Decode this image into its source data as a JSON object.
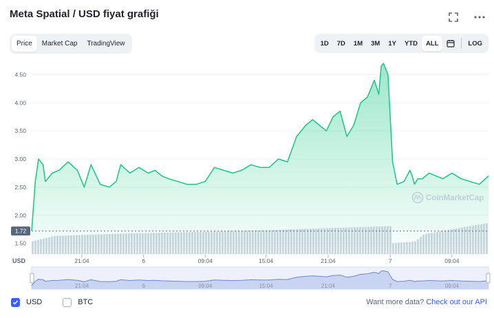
{
  "header": {
    "title": "Meta Spatial / USD fiyat grafiği",
    "fullscreen_icon": "fullscreen-icon",
    "more_icon": "more-horizontal-icon"
  },
  "tabs": [
    {
      "label": "Price",
      "active": true
    },
    {
      "label": "Market Cap",
      "active": false
    },
    {
      "label": "TradingView",
      "active": false
    }
  ],
  "ranges": [
    "1D",
    "7D",
    "1M",
    "3M",
    "1Y",
    "YTD",
    "ALL"
  ],
  "active_range": "ALL",
  "calendar_icon": "calendar-icon",
  "log_label": "LOG",
  "watermark": "CoinMarketCap",
  "footer": {
    "usd_label": "USD",
    "usd_checked": true,
    "btc_label": "BTC",
    "btc_checked": false,
    "api_prompt": "Want more data?",
    "api_link": "Check out our API"
  },
  "colors": {
    "line": "#16c784",
    "fill_top": "#16c784",
    "volume": "#cfd6e4",
    "navigator": "#6788d7",
    "accent": "#3861fb"
  },
  "chart_data": {
    "type": "line",
    "currency_label": "USD",
    "y_ticks": [
      "4.50",
      "4.00",
      "3.50",
      "3.00",
      "2.50",
      "2.00",
      "1.50"
    ],
    "ylim": [
      1.3,
      4.75
    ],
    "start_price": 1.72,
    "start_price_label": "1.72",
    "x_ticks": [
      {
        "label": "21:04",
        "t": 0.11
      },
      {
        "label": "6",
        "t": 0.245
      },
      {
        "label": "09:04",
        "t": 0.38
      },
      {
        "label": "15:04",
        "t": 0.513
      },
      {
        "label": "21:04",
        "t": 0.649
      },
      {
        "label": "7",
        "t": 0.785
      },
      {
        "label": "09:04",
        "t": 0.92
      }
    ],
    "series": [
      {
        "t": [
          0.0,
          0.008,
          0.015,
          0.025,
          0.03,
          0.045,
          0.06,
          0.08,
          0.1,
          0.115,
          0.13,
          0.15,
          0.17,
          0.185,
          0.195,
          0.215,
          0.235,
          0.255,
          0.27,
          0.285,
          0.3,
          0.32,
          0.34,
          0.36,
          0.38,
          0.4,
          0.42,
          0.44,
          0.46,
          0.48,
          0.5,
          0.52,
          0.54,
          0.56,
          0.58,
          0.6,
          0.615,
          0.63,
          0.645,
          0.66,
          0.675,
          0.69,
          0.705,
          0.72,
          0.735,
          0.75,
          0.76,
          0.765,
          0.77,
          0.78,
          0.79,
          0.8,
          0.815,
          0.828,
          0.833,
          0.838,
          0.845,
          0.855,
          0.87,
          0.885,
          0.9,
          0.92,
          0.94,
          0.96,
          0.98,
          1.0
        ],
        "values": [
          1.72,
          2.6,
          3.0,
          2.9,
          2.6,
          2.75,
          2.8,
          2.95,
          2.8,
          2.5,
          2.9,
          2.55,
          2.5,
          2.6,
          2.9,
          2.75,
          2.85,
          2.75,
          2.8,
          2.7,
          2.65,
          2.6,
          2.55,
          2.55,
          2.6,
          2.85,
          2.8,
          2.75,
          2.8,
          2.9,
          2.85,
          2.85,
          3.0,
          2.95,
          3.4,
          3.6,
          3.7,
          3.6,
          3.5,
          3.75,
          3.85,
          3.4,
          3.6,
          4.0,
          4.1,
          4.4,
          4.15,
          4.65,
          4.7,
          4.5,
          2.95,
          2.55,
          2.6,
          2.8,
          2.7,
          2.55,
          2.65,
          2.65,
          2.75,
          2.7,
          2.65,
          2.75,
          2.65,
          2.6,
          2.55,
          2.7
        ]
      }
    ],
    "volume": [
      {
        "t": 0.0,
        "v": 0.4
      },
      {
        "t": 0.05,
        "v": 0.58
      },
      {
        "t": 0.2,
        "v": 0.66
      },
      {
        "t": 0.5,
        "v": 0.76
      },
      {
        "t": 0.7,
        "v": 0.86
      },
      {
        "t": 0.787,
        "v": 0.9
      },
      {
        "t": 0.79,
        "v": 0.35
      },
      {
        "t": 0.84,
        "v": 0.4
      },
      {
        "t": 0.86,
        "v": 0.64
      },
      {
        "t": 1.0,
        "v": 1.0
      }
    ]
  }
}
